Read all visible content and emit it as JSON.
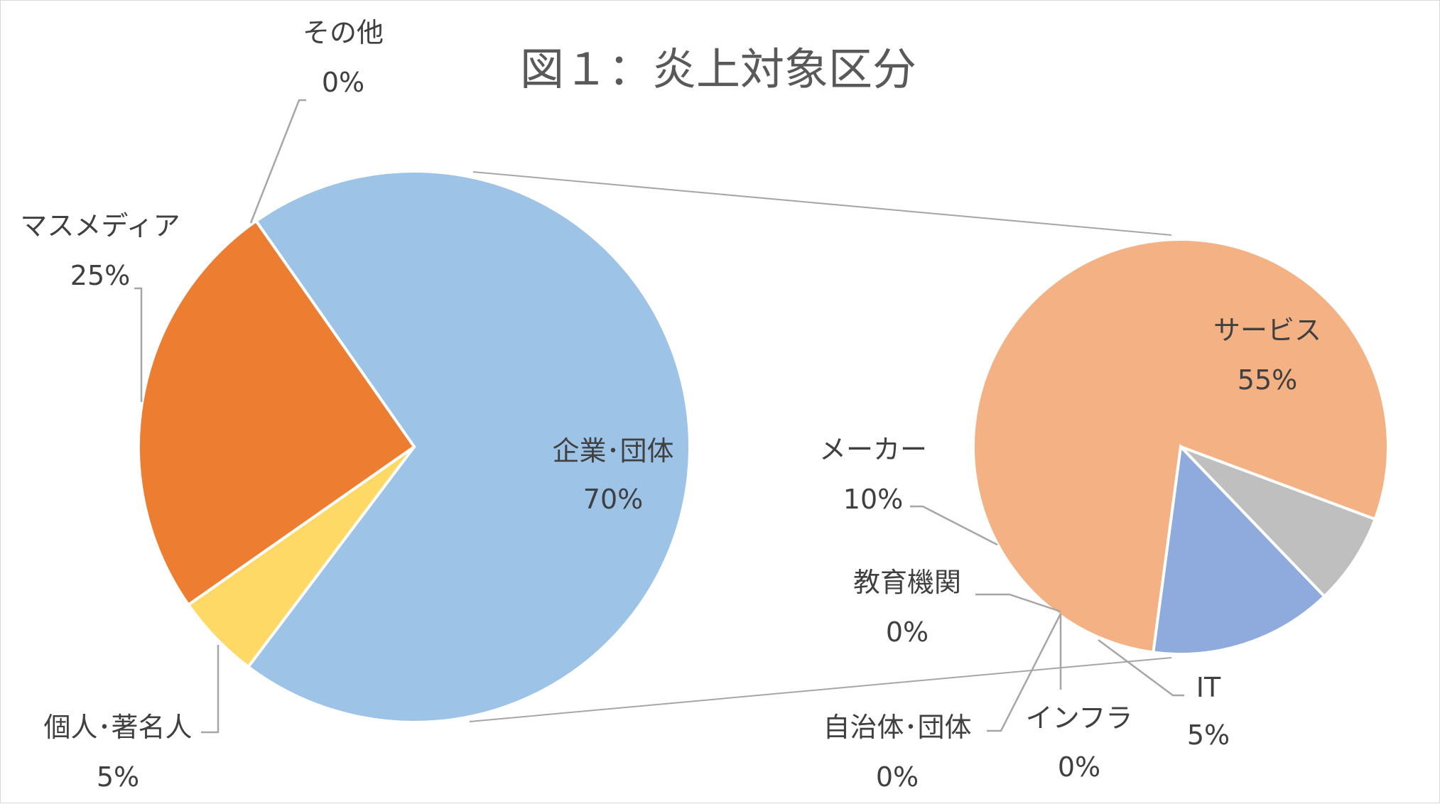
{
  "chart_data": {
    "type": "pie",
    "subtype": "pie-of-pie",
    "title": "図１：炎上対象区分",
    "primary": {
      "slices": [
        {
          "label": "企業･団体",
          "value": 70,
          "value_label": "70%",
          "color": "#9dc3e6"
        },
        {
          "label": "個人･著名人",
          "value": 5,
          "value_label": "5%",
          "color": "#ffd966"
        },
        {
          "label": "マスメディア",
          "value": 25,
          "value_label": "25%",
          "color": "#ed7d31"
        },
        {
          "label": "その他",
          "value": 0,
          "value_label": "0%",
          "color": "#a5a5a5"
        }
      ]
    },
    "secondary": {
      "parent": "企業･団体",
      "slices": [
        {
          "label": "サービス",
          "value": 55,
          "value_label": "55%",
          "color": "#f4b183"
        },
        {
          "label": "IT",
          "value": 5,
          "value_label": "5%",
          "color": "#bfbfbf"
        },
        {
          "label": "インフラ",
          "value": 0,
          "value_label": "0%",
          "color": "#d9d9d9"
        },
        {
          "label": "自治体･団体",
          "value": 0,
          "value_label": "0%",
          "color": "#c9c9c9"
        },
        {
          "label": "教育機関",
          "value": 0,
          "value_label": "0%",
          "color": "#b4c7e7"
        },
        {
          "label": "メーカー",
          "value": 10,
          "value_label": "10%",
          "color": "#8faadc"
        }
      ]
    }
  }
}
